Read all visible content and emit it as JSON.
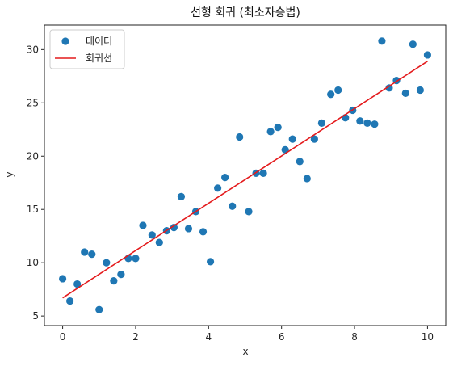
{
  "chart_data": {
    "type": "scatter",
    "title": "선형 회귀 (최소자승법)",
    "xlabel": "x",
    "ylabel": "y",
    "xlim": [
      -0.5,
      10.5
    ],
    "ylim": [
      4.1,
      32.3
    ],
    "xticks": [
      0,
      2,
      4,
      6,
      8,
      10
    ],
    "yticks": [
      5,
      10,
      15,
      20,
      25,
      30
    ],
    "grid": false,
    "legend_position": "top-left",
    "series": [
      {
        "name": "데이터",
        "kind": "scatter",
        "color": "#1f77b4",
        "points": [
          [
            0.0,
            8.5
          ],
          [
            0.2,
            6.4
          ],
          [
            0.4,
            8.0
          ],
          [
            0.6,
            11.0
          ],
          [
            0.8,
            10.8
          ],
          [
            1.0,
            5.6
          ],
          [
            1.2,
            10.0
          ],
          [
            1.4,
            8.3
          ],
          [
            1.6,
            8.9
          ],
          [
            1.8,
            10.4
          ],
          [
            2.0,
            10.4
          ],
          [
            2.2,
            13.5
          ],
          [
            2.45,
            12.6
          ],
          [
            2.65,
            11.9
          ],
          [
            2.85,
            13.0
          ],
          [
            3.05,
            13.3
          ],
          [
            3.25,
            16.2
          ],
          [
            3.45,
            13.2
          ],
          [
            3.65,
            14.8
          ],
          [
            3.85,
            12.9
          ],
          [
            4.05,
            10.1
          ],
          [
            4.25,
            17.0
          ],
          [
            4.45,
            18.0
          ],
          [
            4.65,
            15.3
          ],
          [
            4.85,
            21.8
          ],
          [
            5.1,
            14.8
          ],
          [
            5.3,
            18.4
          ],
          [
            5.5,
            18.4
          ],
          [
            5.7,
            22.3
          ],
          [
            5.9,
            22.7
          ],
          [
            6.1,
            20.6
          ],
          [
            6.3,
            21.6
          ],
          [
            6.5,
            19.5
          ],
          [
            6.7,
            17.9
          ],
          [
            6.9,
            21.6
          ],
          [
            7.1,
            23.1
          ],
          [
            7.35,
            25.8
          ],
          [
            7.55,
            26.2
          ],
          [
            7.75,
            23.6
          ],
          [
            7.95,
            24.3
          ],
          [
            8.15,
            23.3
          ],
          [
            8.35,
            23.1
          ],
          [
            8.55,
            23.0
          ],
          [
            8.75,
            30.8
          ],
          [
            8.95,
            26.4
          ],
          [
            9.15,
            27.1
          ],
          [
            9.4,
            25.9
          ],
          [
            9.6,
            30.5
          ],
          [
            9.8,
            26.2
          ],
          [
            10.0,
            29.5
          ]
        ]
      },
      {
        "name": "회귀선",
        "kind": "line",
        "color": "#e41a1c",
        "points": [
          [
            0,
            6.7
          ],
          [
            10,
            28.9
          ]
        ]
      }
    ]
  }
}
